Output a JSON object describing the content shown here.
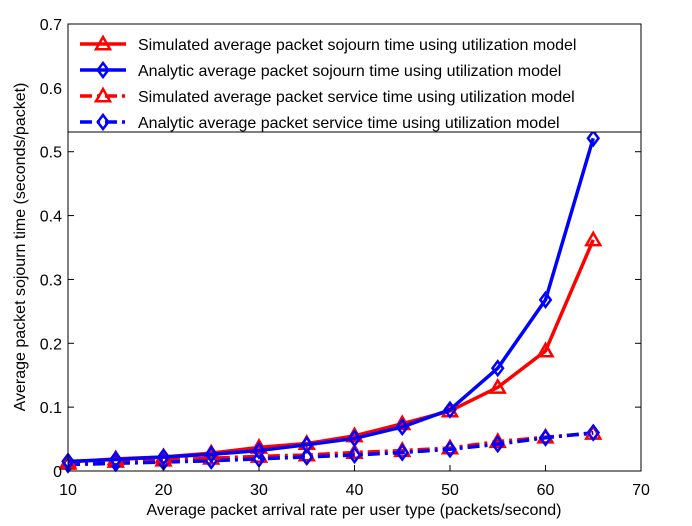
{
  "chart_data": {
    "type": "line",
    "xlabel": "Average packet arrival rate per user type (packets/second)",
    "ylabel": "Average packet sojourn time (seconds/packet)",
    "xlim": [
      10,
      70
    ],
    "ylim": [
      0,
      0.7
    ],
    "xticks": [
      "10",
      "20",
      "30",
      "40",
      "50",
      "60",
      "70"
    ],
    "yticks": [
      "0",
      "0.1",
      "0.2",
      "0.3",
      "0.4",
      "0.5",
      "0.6",
      "0.7"
    ],
    "grid": false,
    "legend_position": "top-right",
    "x": [
      10,
      15,
      20,
      25,
      30,
      35,
      40,
      45,
      50,
      55,
      60,
      65
    ],
    "series": [
      {
        "name": "Simulated average packet sojourn time using utilization model",
        "color": "#ff0000",
        "marker": "triangle",
        "line_style": "solid",
        "values": [
          0.014,
          0.019,
          0.022,
          0.028,
          0.037,
          0.043,
          0.055,
          0.074,
          0.094,
          0.131,
          0.188,
          0.362
        ]
      },
      {
        "name": "Analytic average packet sojourn time using utilization model",
        "color": "#0000ff",
        "marker": "diamond",
        "line_style": "solid",
        "values": [
          0.015,
          0.018,
          0.022,
          0.026,
          0.032,
          0.041,
          0.051,
          0.069,
          0.096,
          0.161,
          0.268,
          0.521
        ]
      },
      {
        "name": "Simulated average packet service time using utilization model",
        "color": "#ff0000",
        "marker": "triangle",
        "line_style": "dashdot",
        "values": [
          0.012,
          0.015,
          0.017,
          0.02,
          0.023,
          0.025,
          0.029,
          0.032,
          0.036,
          0.046,
          0.053,
          0.059
        ]
      },
      {
        "name": "Analytic average packet service time using utilization model",
        "color": "#0000ff",
        "marker": "diamond",
        "line_style": "dashdot",
        "values": [
          0.01,
          0.012,
          0.014,
          0.016,
          0.019,
          0.022,
          0.025,
          0.029,
          0.034,
          0.042,
          0.052,
          0.06
        ]
      }
    ]
  }
}
